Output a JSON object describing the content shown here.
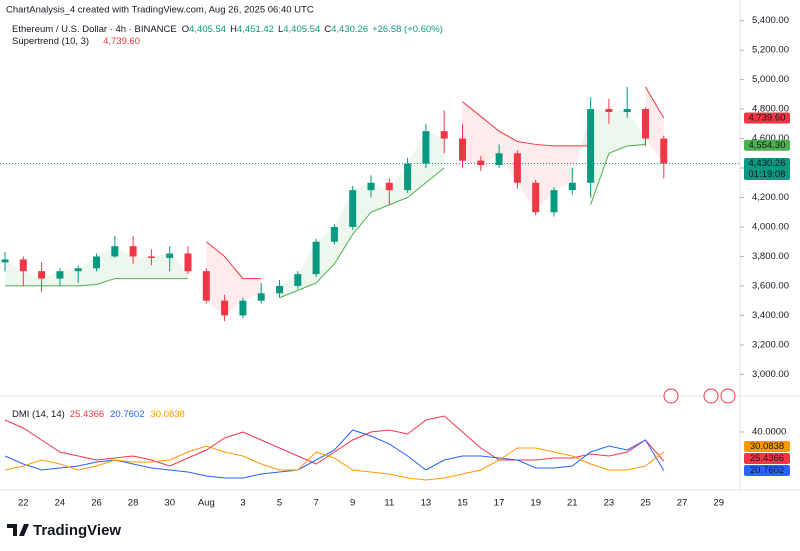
{
  "header": {
    "attribution": "ChartAnalysis_4 created with TradingView.com, Aug 26, 2025 06:40 UTC"
  },
  "footer": {
    "logo": "TradingView"
  },
  "chart_data": [
    {
      "type": "candlestick",
      "title": "Ethereum / U.S. Dollar · 4h · BINANCE",
      "ohlc_legend": [
        {
          "key": "O",
          "value": "4,405.54"
        },
        {
          "key": "H",
          "value": "4,451.42"
        },
        {
          "key": "L",
          "value": "4,405.54"
        },
        {
          "key": "C",
          "value": "4,430.26"
        }
      ],
      "change": "+26.58 (+0.60%)",
      "categories": [
        null,
        "22",
        null,
        "24",
        null,
        "26",
        null,
        "28",
        null,
        "30",
        null,
        "Aug",
        null,
        "3",
        null,
        "5",
        null,
        "7",
        null,
        "9",
        null,
        "11",
        null,
        "13",
        null,
        "15",
        null,
        "17",
        null,
        "19",
        null,
        "21",
        null,
        "23",
        null,
        "25",
        null,
        "27",
        null,
        "29"
      ],
      "open": [
        3760,
        3780,
        3700,
        3650,
        3700,
        3720,
        3800,
        3870,
        3800,
        3790,
        3820,
        3700,
        3500,
        3400,
        3500,
        3550,
        3600,
        3680,
        3900,
        4000,
        4250,
        4300,
        4250,
        4430,
        4650,
        4600,
        4450,
        4420,
        4500,
        4300,
        4100,
        4250,
        4300,
        4800,
        4780,
        4800,
        4600,
        null,
        null,
        null
      ],
      "high": [
        3830,
        3800,
        3760,
        3720,
        3740,
        3820,
        3940,
        3940,
        3850,
        3870,
        3870,
        3720,
        3540,
        3520,
        3620,
        3640,
        3700,
        3920,
        4020,
        4280,
        4350,
        4330,
        4470,
        4700,
        4790,
        4700,
        4480,
        4560,
        4520,
        4320,
        4270,
        4400,
        4880,
        4870,
        4950,
        4810,
        4620,
        null,
        null,
        null
      ],
      "low": [
        3700,
        3600,
        3560,
        3600,
        3620,
        3700,
        3790,
        3750,
        3740,
        3700,
        3680,
        3480,
        3360,
        3380,
        3480,
        3520,
        3580,
        3660,
        3880,
        3980,
        4200,
        4150,
        4230,
        4400,
        4500,
        4400,
        4380,
        4400,
        4260,
        4080,
        4070,
        4220,
        4200,
        4700,
        4740,
        4550,
        4330,
        null,
        null,
        null
      ],
      "close": [
        3780,
        3700,
        3650,
        3700,
        3720,
        3800,
        3870,
        3800,
        3790,
        3820,
        3700,
        3500,
        3400,
        3500,
        3550,
        3600,
        3680,
        3900,
        4000,
        4250,
        4300,
        4250,
        4430,
        4650,
        4600,
        4450,
        4420,
        4500,
        4300,
        4100,
        4250,
        4300,
        4800,
        4780,
        4800,
        4600,
        4430.26,
        null,
        null,
        null
      ],
      "up_color": "#089981",
      "down_color": "#f23645",
      "supertrend": {
        "label": "Supertrend (10, 3)",
        "value_label": "4,739.60",
        "up": [
          3600,
          3600,
          3600,
          3600,
          3600,
          3610,
          3650,
          3650,
          3650,
          3650,
          3650,
          null,
          null,
          null,
          null,
          3520,
          3570,
          3620,
          3750,
          3950,
          4100,
          4150,
          4200,
          4300,
          4400,
          null,
          null,
          null,
          null,
          null,
          null,
          null,
          4150,
          4500,
          4550,
          4560,
          null,
          null,
          null,
          null
        ],
        "down": [
          null,
          null,
          null,
          null,
          null,
          null,
          null,
          null,
          null,
          null,
          null,
          3900,
          3800,
          3650,
          3650,
          null,
          null,
          null,
          null,
          null,
          null,
          null,
          null,
          null,
          null,
          4850,
          4750,
          4650,
          4580,
          4560,
          4550,
          4550,
          4550,
          null,
          null,
          4950,
          4739.6,
          null,
          null,
          null
        ],
        "up_color": "#4caf50",
        "down_color": "#f23645"
      },
      "ylim": [
        2860,
        5540
      ],
      "yticks": [
        {
          "value": 3000,
          "label": "3,000.00"
        },
        {
          "value": 3200,
          "label": "3,200.00"
        },
        {
          "value": 3400,
          "label": "3,400.00"
        },
        {
          "value": 3600,
          "label": "3,600.00"
        },
        {
          "value": 3800,
          "label": "3,800.00"
        },
        {
          "value": 4000,
          "label": "4,000.00"
        },
        {
          "value": 4200,
          "label": "4,200.00"
        },
        {
          "value": 4400,
          "label": "4,400.00"
        },
        {
          "value": 4600,
          "label": "4,600.00"
        },
        {
          "value": 4800,
          "label": "4,800.00"
        },
        {
          "value": 5000,
          "label": "5,000.00"
        },
        {
          "value": 5200,
          "label": "5,200.00"
        },
        {
          "value": 5400,
          "label": "5,400.00"
        }
      ],
      "price_labels": [
        {
          "value": 4739.6,
          "label": "4,739.60",
          "color": "#f23645"
        },
        {
          "value": 4554.3,
          "label": "4,554.30",
          "color": "#4caf50"
        },
        {
          "value": 4430.26,
          "label": "4,430.26",
          "color": "#089981",
          "sublabel": "01:19:08"
        }
      ],
      "grid": false
    },
    {
      "type": "line",
      "title": "DMI (14, 14)",
      "series": [
        {
          "color": "#f23645",
          "value_label": "25.4366",
          "values": [
            46,
            42,
            36,
            30,
            28,
            26,
            27,
            28,
            26,
            23,
            27,
            31,
            37,
            40,
            36,
            32,
            28,
            24,
            30,
            36,
            40,
            41,
            39,
            46,
            48,
            40,
            32,
            26,
            26,
            26,
            27,
            27,
            29,
            28,
            30,
            36,
            25.4366,
            null,
            null,
            null
          ]
        },
        {
          "color": "#2962ff",
          "value_label": "20.7602",
          "values": [
            28,
            24,
            21,
            22,
            23,
            25,
            26,
            24,
            22,
            21,
            20,
            18,
            17,
            17,
            19,
            20,
            21,
            26,
            31,
            41,
            38,
            34,
            28,
            21,
            26,
            28,
            28,
            27,
            26,
            22,
            22,
            23,
            30,
            33,
            31,
            36,
            20.7602,
            null,
            null,
            null
          ]
        },
        {
          "color": "#ff9800",
          "value_label": "30.0838",
          "values": [
            21,
            23,
            26,
            24,
            21,
            23,
            26,
            25,
            25,
            26,
            30,
            33,
            30,
            28,
            24,
            21,
            21,
            30,
            27,
            21,
            20,
            19,
            17,
            16,
            17,
            19,
            21,
            26,
            32,
            32,
            30,
            28,
            24,
            21,
            21,
            23,
            30.0838,
            null,
            null,
            null
          ]
        }
      ],
      "ylim": [
        12,
        52
      ],
      "yticks": [
        {
          "value": 40,
          "label": "40.0000"
        }
      ]
    }
  ]
}
